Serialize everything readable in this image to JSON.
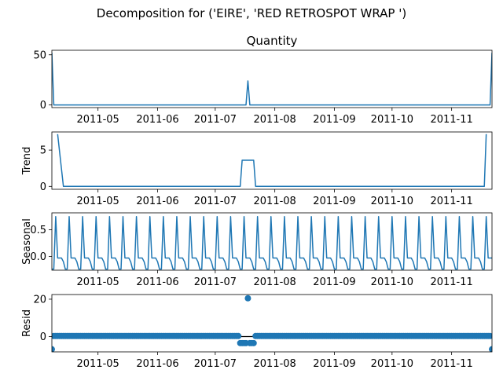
{
  "chart_data": {
    "type": "line",
    "title": "Decomposition for ('EIRE', 'RED RETROSPOT WRAP ')",
    "color": "#1f77b4",
    "x_range": [
      "2011-04-07",
      "2011-11-22"
    ],
    "x_tick_labels": [
      "2011-05",
      "2011-06",
      "2011-07",
      "2011-08",
      "2011-09",
      "2011-10",
      "2011-11"
    ],
    "x_tick_dates": [
      "2011-05-01",
      "2011-06-01",
      "2011-07-01",
      "2011-08-01",
      "2011-09-01",
      "2011-10-01",
      "2011-11-01"
    ],
    "series_dates": {
      "start": "2011-04-07",
      "end": "2011-11-22",
      "step_days": 1
    },
    "panels": [
      {
        "key": "observed",
        "title": "Quantity",
        "ylabel": "",
        "style": "line",
        "ylim": [
          -2.6,
          54.5
        ],
        "yticks": [
          0,
          50
        ],
        "baseline": 0,
        "points": [
          {
            "x": "2011-04-07",
            "y": 52
          },
          {
            "x": "2011-04-08",
            "y": 0
          },
          {
            "x": "2011-07-17",
            "y": 0
          },
          {
            "x": "2011-07-18",
            "y": 24
          },
          {
            "x": "2011-07-19",
            "y": 0
          },
          {
            "x": "2011-11-21",
            "y": 0
          },
          {
            "x": "2011-11-22",
            "y": 52
          }
        ]
      },
      {
        "key": "trend",
        "title": "",
        "ylabel": "Trend",
        "style": "line",
        "ylim": [
          -0.4,
          7.5
        ],
        "yticks": [
          0,
          5
        ],
        "baseline": 0,
        "points": [
          {
            "x": "2011-04-10",
            "y": 7.2
          },
          {
            "x": "2011-04-13",
            "y": 0
          },
          {
            "x": "2011-07-14",
            "y": 0
          },
          {
            "x": "2011-07-15",
            "y": 3.6
          },
          {
            "x": "2011-07-21",
            "y": 3.6
          },
          {
            "x": "2011-07-22",
            "y": 0
          },
          {
            "x": "2011-11-18",
            "y": 0
          },
          {
            "x": "2011-11-19",
            "y": 7.2
          }
        ]
      },
      {
        "key": "seasonal",
        "title": "",
        "ylabel": "Seasonal",
        "style": "line",
        "ylim": [
          -0.26,
          0.82
        ],
        "yticks": [
          0.0,
          0.5
        ],
        "ytick_labels": [
          "0.0",
          "0.5"
        ],
        "weekly_pattern": [
          0.75,
          -0.03,
          -0.03,
          -0.03,
          -0.1,
          -0.24,
          -0.24
        ],
        "pattern_start": "2011-04-09"
      },
      {
        "key": "resid",
        "title": "",
        "ylabel": "Resid",
        "style": "scatter",
        "ylim": [
          -8.2,
          22.5
        ],
        "yticks": [
          0,
          20
        ],
        "baseline": 0,
        "default_value": 0.3,
        "overrides": [
          {
            "x": "2011-04-07",
            "y": -6.8
          },
          {
            "x": "2011-07-14",
            "y": -3.5
          },
          {
            "x": "2011-07-15",
            "y": -3.5
          },
          {
            "x": "2011-07-16",
            "y": -3.5
          },
          {
            "x": "2011-07-17",
            "y": -3.5
          },
          {
            "x": "2011-07-18",
            "y": 20.5
          },
          {
            "x": "2011-07-19",
            "y": -3.5
          },
          {
            "x": "2011-07-20",
            "y": -3.5
          },
          {
            "x": "2011-07-21",
            "y": -3.5
          },
          {
            "x": "2011-11-22",
            "y": -6.8
          }
        ]
      }
    ]
  }
}
